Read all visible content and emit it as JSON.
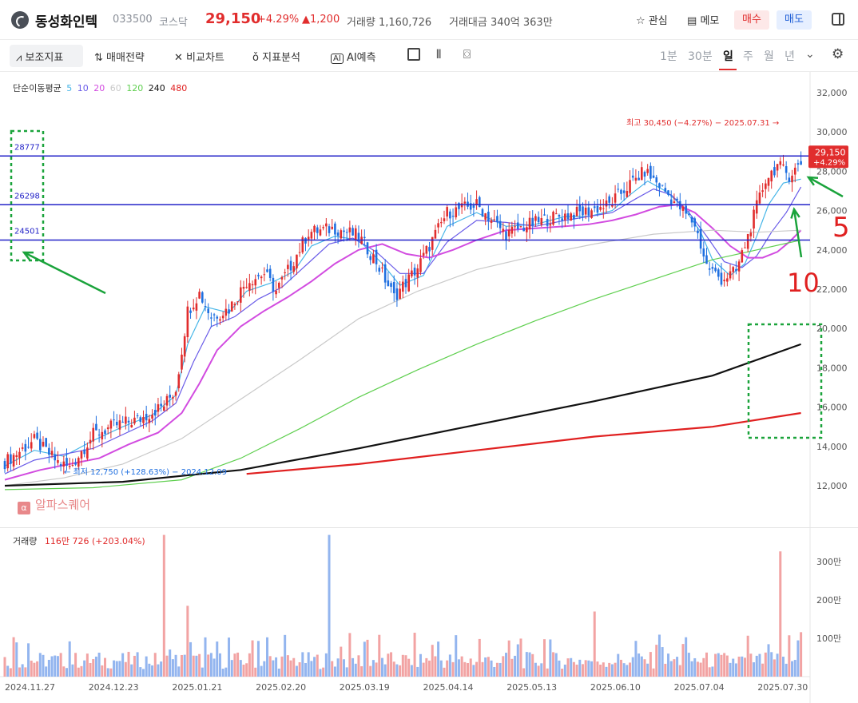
{
  "header": {
    "name": "동성화인텍",
    "code": "033500",
    "market": "코스닥",
    "price": "29,150",
    "change_pct": "+4.29%",
    "change_abs": "▲1,200",
    "volume_label": "거래량 1,160,726",
    "amount_label": "거래대금 340억 363만",
    "watch_label": "관심",
    "memo_label": "메모",
    "buy_label": "매수",
    "sell_label": "매도"
  },
  "toolbar": {
    "indicators": "보조지표",
    "strategy": "매매전략",
    "compare": "비교차트",
    "analysis": "지표분석",
    "ai_predict": "AI예측",
    "ai_badge": "AI",
    "timeframes": [
      "1분",
      "30분",
      "일",
      "주",
      "월",
      "년"
    ],
    "selected_timeframe": "일"
  },
  "ma_legend": {
    "title": "단순이동평균",
    "periods": [
      {
        "label": "5",
        "color": "#47b6e8"
      },
      {
        "label": "10",
        "color": "#6a5ce8"
      },
      {
        "label": "20",
        "color": "#d24ce0"
      },
      {
        "label": "60",
        "color": "#c9c9c9"
      },
      {
        "label": "120",
        "color": "#5fcf4f"
      },
      {
        "label": "240",
        "color": "#111111"
      },
      {
        "label": "480",
        "color": "#e02020"
      }
    ]
  },
  "annotations": {
    "high_label": "최고 30,450 (−4.27%) − 2025.07.31 →",
    "low_label": "← 최저 12,750 (+128.63%) − 2024.12.09",
    "watermark": "알파스퀘어",
    "watermark_badge": "α",
    "price_tag": "29,150",
    "price_tag_pct": "+4.29%",
    "hand_5": "5",
    "hand_10": "10"
  },
  "volume_legend": {
    "title": "거래량",
    "value": "116만 726 (+203.04%)"
  },
  "chart_data": {
    "type": "candlestick",
    "price_axis": {
      "ticks": [
        12000,
        14000,
        16000,
        18000,
        20000,
        22000,
        24000,
        26000,
        28000,
        30000,
        32000
      ],
      "tick_labels": [
        "12,000",
        "14,000",
        "16,000",
        "18,000",
        "20,000",
        "22,000",
        "24,000",
        "26,000",
        "28,000",
        "30,000",
        "32,000"
      ],
      "range": [
        11200,
        32800
      ]
    },
    "volume_axis": {
      "tick_labels": [
        "100만",
        "200만",
        "300만"
      ],
      "ticks": [
        1000000,
        2000000,
        3000000
      ],
      "range": [
        0,
        3900000
      ]
    },
    "x_labels": [
      "2024.11.27",
      "2024.12.23",
      "2025.01.21",
      "2025.02.20",
      "2025.03.19",
      "2025.04.14",
      "2025.05.13",
      "2025.06.10",
      "2025.07.04",
      "2025.07.30"
    ],
    "horizontal_levels": [
      {
        "value": 28777,
        "label": "28777"
      },
      {
        "value": 26298,
        "label": "26298"
      },
      {
        "value": 24501,
        "label": "24501"
      }
    ],
    "price_path": [
      [
        0,
        13200
      ],
      [
        10,
        14300
      ],
      [
        18,
        13200
      ],
      [
        22,
        12900
      ],
      [
        30,
        14600
      ],
      [
        38,
        15100
      ],
      [
        46,
        15400
      ],
      [
        54,
        16100
      ],
      [
        58,
        16900
      ],
      [
        62,
        20900
      ],
      [
        66,
        21800
      ],
      [
        70,
        20600
      ],
      [
        76,
        21000
      ],
      [
        82,
        22400
      ],
      [
        88,
        22800
      ],
      [
        92,
        21900
      ],
      [
        97,
        23200
      ],
      [
        103,
        24900
      ],
      [
        112,
        25100
      ],
      [
        120,
        24700
      ],
      [
        126,
        23400
      ],
      [
        132,
        21600
      ],
      [
        140,
        23100
      ],
      [
        150,
        25900
      ],
      [
        160,
        26300
      ],
      [
        170,
        24800
      ],
      [
        178,
        25300
      ],
      [
        187,
        25700
      ],
      [
        196,
        25900
      ],
      [
        205,
        26300
      ],
      [
        211,
        27200
      ],
      [
        217,
        28000
      ],
      [
        222,
        27300
      ],
      [
        228,
        26300
      ],
      [
        234,
        25300
      ],
      [
        238,
        23200
      ],
      [
        243,
        22500
      ],
      [
        248,
        22900
      ],
      [
        252,
        24700
      ],
      [
        255,
        26200
      ],
      [
        258,
        27600
      ],
      [
        262,
        28300
      ],
      [
        266,
        27800
      ],
      [
        270,
        28400
      ]
    ],
    "ma_series": [
      {
        "name": "5",
        "color": "#47b6e8",
        "points": [
          [
            0,
            13000
          ],
          [
            10,
            13800
          ],
          [
            20,
            13500
          ],
          [
            30,
            14300
          ],
          [
            40,
            15000
          ],
          [
            50,
            15600
          ],
          [
            58,
            16600
          ],
          [
            62,
            19200
          ],
          [
            68,
            21100
          ],
          [
            76,
            20800
          ],
          [
            82,
            21900
          ],
          [
            90,
            22300
          ],
          [
            98,
            22900
          ],
          [
            104,
            24200
          ],
          [
            112,
            24700
          ],
          [
            120,
            24500
          ],
          [
            128,
            23300
          ],
          [
            134,
            22200
          ],
          [
            142,
            22700
          ],
          [
            150,
            25200
          ],
          [
            160,
            25900
          ],
          [
            170,
            25200
          ],
          [
            180,
            25300
          ],
          [
            190,
            25700
          ],
          [
            198,
            25700
          ],
          [
            206,
            26000
          ],
          [
            212,
            26800
          ],
          [
            218,
            27500
          ],
          [
            224,
            27000
          ],
          [
            230,
            26200
          ],
          [
            236,
            24900
          ],
          [
            240,
            23500
          ],
          [
            246,
            22700
          ],
          [
            251,
            23300
          ],
          [
            255,
            24700
          ],
          [
            259,
            26300
          ],
          [
            264,
            27400
          ],
          [
            270,
            27600
          ]
        ]
      },
      {
        "name": "10",
        "color": "#6a5ce8",
        "points": [
          [
            0,
            12600
          ],
          [
            10,
            13300
          ],
          [
            20,
            13600
          ],
          [
            30,
            13900
          ],
          [
            40,
            14600
          ],
          [
            50,
            15300
          ],
          [
            58,
            16200
          ],
          [
            64,
            18300
          ],
          [
            70,
            20100
          ],
          [
            78,
            20600
          ],
          [
            86,
            21500
          ],
          [
            94,
            22100
          ],
          [
            102,
            23200
          ],
          [
            110,
            24300
          ],
          [
            118,
            24600
          ],
          [
            126,
            23900
          ],
          [
            134,
            22800
          ],
          [
            142,
            22800
          ],
          [
            150,
            24400
          ],
          [
            160,
            25500
          ],
          [
            170,
            25400
          ],
          [
            180,
            25200
          ],
          [
            190,
            25500
          ],
          [
            198,
            25700
          ],
          [
            206,
            25900
          ],
          [
            214,
            26600
          ],
          [
            220,
            27100
          ],
          [
            226,
            26800
          ],
          [
            232,
            25900
          ],
          [
            238,
            24700
          ],
          [
            244,
            23400
          ],
          [
            250,
            23100
          ],
          [
            255,
            23700
          ],
          [
            260,
            24900
          ],
          [
            265,
            25900
          ],
          [
            270,
            27200
          ]
        ]
      },
      {
        "name": "20",
        "color": "#d24ce0",
        "points": [
          [
            0,
            12300
          ],
          [
            12,
            12800
          ],
          [
            22,
            13100
          ],
          [
            32,
            13400
          ],
          [
            42,
            14100
          ],
          [
            52,
            14700
          ],
          [
            60,
            15700
          ],
          [
            66,
            17200
          ],
          [
            72,
            18900
          ],
          [
            80,
            20100
          ],
          [
            88,
            20900
          ],
          [
            96,
            21600
          ],
          [
            104,
            22400
          ],
          [
            112,
            23300
          ],
          [
            120,
            24000
          ],
          [
            128,
            24300
          ],
          [
            136,
            23800
          ],
          [
            144,
            23600
          ],
          [
            152,
            24000
          ],
          [
            160,
            24500
          ],
          [
            170,
            25000
          ],
          [
            180,
            25100
          ],
          [
            190,
            25200
          ],
          [
            198,
            25300
          ],
          [
            206,
            25500
          ],
          [
            214,
            25800
          ],
          [
            222,
            26200
          ],
          [
            228,
            26300
          ],
          [
            234,
            25900
          ],
          [
            240,
            25100
          ],
          [
            246,
            24200
          ],
          [
            252,
            23600
          ],
          [
            257,
            23600
          ],
          [
            262,
            23900
          ],
          [
            266,
            24400
          ],
          [
            270,
            25000
          ]
        ]
      },
      {
        "name": "60",
        "color": "#c9c9c9",
        "points": [
          [
            0,
            12000
          ],
          [
            20,
            12400
          ],
          [
            40,
            13100
          ],
          [
            60,
            14400
          ],
          [
            80,
            16400
          ],
          [
            100,
            18400
          ],
          [
            120,
            20500
          ],
          [
            140,
            21900
          ],
          [
            160,
            23000
          ],
          [
            180,
            23700
          ],
          [
            200,
            24300
          ],
          [
            220,
            24800
          ],
          [
            240,
            25000
          ],
          [
            255,
            24900
          ],
          [
            270,
            25000
          ]
        ]
      },
      {
        "name": "120",
        "color": "#5fcf4f",
        "points": [
          [
            0,
            11800
          ],
          [
            30,
            11900
          ],
          [
            60,
            12300
          ],
          [
            80,
            13400
          ],
          [
            100,
            14900
          ],
          [
            120,
            16500
          ],
          [
            140,
            17900
          ],
          [
            160,
            19200
          ],
          [
            180,
            20400
          ],
          [
            200,
            21500
          ],
          [
            220,
            22500
          ],
          [
            240,
            23500
          ],
          [
            255,
            24000
          ],
          [
            270,
            24500
          ]
        ]
      },
      {
        "name": "240",
        "color": "#111111",
        "points": [
          [
            0,
            12000
          ],
          [
            40,
            12200
          ],
          [
            80,
            12800
          ],
          [
            120,
            13900
          ],
          [
            160,
            15100
          ],
          [
            200,
            16300
          ],
          [
            240,
            17600
          ],
          [
            270,
            19200
          ]
        ]
      },
      {
        "name": "480",
        "color": "#e02020",
        "points": [
          [
            82,
            12600
          ],
          [
            120,
            13100
          ],
          [
            160,
            13800
          ],
          [
            200,
            14500
          ],
          [
            240,
            15000
          ],
          [
            270,
            15700
          ]
        ]
      }
    ],
    "volume": [
      {
        "x": 54,
        "v": 3700000,
        "up": true
      },
      {
        "x": 62,
        "v": 1850000,
        "up": true
      },
      {
        "x": 110,
        "v": 3700000,
        "up": false
      },
      {
        "x": 200,
        "v": 1700000,
        "up": true
      },
      {
        "x": 263,
        "v": 3270000,
        "up": true
      },
      {
        "x": 270,
        "v": 1160726,
        "up": true
      }
    ]
  }
}
